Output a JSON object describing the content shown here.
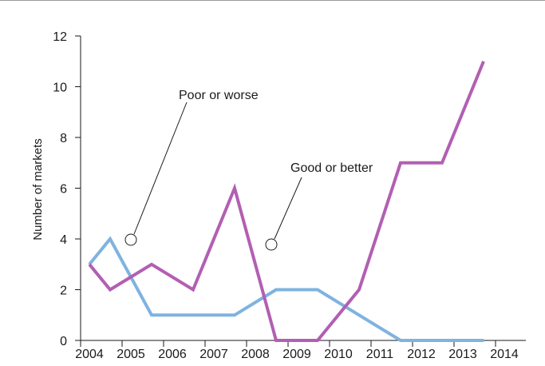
{
  "colors": {
    "series_poor": "#7fb3e0",
    "series_good": "#b25fb3",
    "axis": "#1a1a1a",
    "top_rule": "#9a9a9a"
  },
  "chart_data": {
    "type": "line",
    "title": "",
    "xlabel": "",
    "ylabel": "Number of markets",
    "ylim": [
      0,
      12
    ],
    "xlim": [
      2004,
      2014
    ],
    "yticks": [
      0,
      2,
      4,
      6,
      8,
      10,
      12
    ],
    "xticks": [
      2004,
      2005,
      2006,
      2007,
      2008,
      2009,
      2010,
      2011,
      2012,
      2013,
      2014
    ],
    "grid": false,
    "legend": "none",
    "series": [
      {
        "name": "Poor or worse",
        "color": "#7fb3e0",
        "x": [
          2004,
          2004.5,
          2005.5,
          2006.5,
          2007.5,
          2008.5,
          2009.5,
          2010.5,
          2011.5,
          2012.5,
          2013.5
        ],
        "y": [
          3,
          4,
          1,
          1,
          1,
          2,
          2,
          1,
          0,
          0,
          0
        ]
      },
      {
        "name": "Good or better",
        "color": "#b25fb3",
        "x": [
          2004,
          2004.5,
          2005.5,
          2006.5,
          2007.5,
          2008.5,
          2009.5,
          2010.5,
          2011.5,
          2012.5,
          2013.5
        ],
        "y": [
          3,
          2,
          3,
          2,
          6,
          0,
          0,
          2,
          7,
          7,
          11
        ]
      }
    ],
    "annotations": [
      {
        "text": "Poor or worse",
        "series": "Poor or worse",
        "x": 2004.5,
        "y": 4
      },
      {
        "text": "Good or better",
        "series": "Good or better",
        "x": 2008.1,
        "y": 3.8
      }
    ]
  }
}
